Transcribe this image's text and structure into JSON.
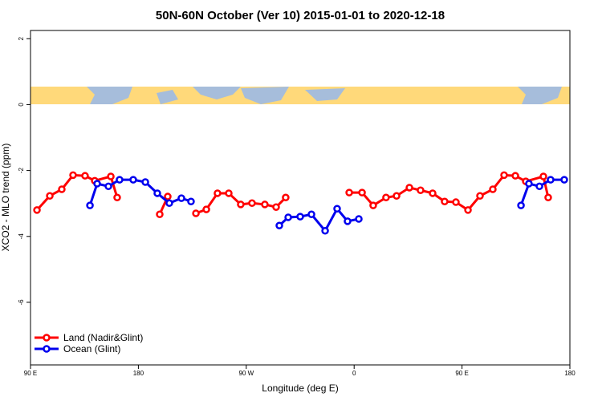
{
  "chart_data": {
    "type": "line",
    "title": "50N-60N October (Ver 10)   2015-01-01 to 2020-12-18",
    "x_label": "Longitude (deg E)",
    "y_label": "XCO2 - MLO trend (ppm)",
    "xlim": [
      90,
      540
    ],
    "ylim": [
      -7.9,
      2.25
    ],
    "xticks": [
      {
        "value": 90,
        "label": "90 E"
      },
      180,
      {
        "value": 270,
        "label": "90 W"
      },
      {
        "value": 360,
        "label": "0"
      },
      {
        "value": 450,
        "label": "90 E"
      },
      {
        "value": 540,
        "label": "180"
      }
    ],
    "yticks": [
      2,
      0,
      -2,
      -4,
      -6
    ],
    "legend": "bottom-left",
    "series": [
      {
        "name": "Land (Nadir&Glint)",
        "color": "#ff0000",
        "x": [
          95.4,
          106.1,
          116.1,
          125.5,
          135.5,
          143.6,
          157,
          162.3,
          null,
          197.8,
          204.5,
          null,
          228,
          236.7,
          246,
          255.4,
          265.4,
          274.8,
          285.5,
          294.9,
          302.9,
          null,
          355.9,
          366.6,
          375.9,
          386.6,
          395.4,
          406.1,
          415.4,
          425.5,
          435.5,
          444.9,
          455,
          465,
          475.7,
          485.1,
          494.5,
          503.2,
          517.9,
          521.9
        ],
        "values": [
          -3.2,
          -2.77,
          -2.57,
          -2.14,
          -2.16,
          -2.31,
          -2.18,
          -2.82,
          null,
          -3.33,
          -2.79,
          null,
          -3.3,
          -3.18,
          -2.69,
          -2.69,
          -3.03,
          -2.99,
          -3.03,
          -3.11,
          -2.82,
          null,
          -2.67,
          -2.67,
          -3.06,
          -2.82,
          -2.77,
          -2.52,
          -2.6,
          -2.69,
          -2.94,
          -2.96,
          -3.2,
          -2.77,
          -2.57,
          -2.14,
          -2.16,
          -2.33,
          -2.18,
          -2.82
        ]
      },
      {
        "name": "Ocean (Glint)",
        "color": "#0000ee",
        "x": [
          139.6,
          145.6,
          155,
          164.3,
          175.7,
          185.8,
          195.8,
          205.8,
          215.9,
          223.9,
          null,
          297.6,
          305,
          315,
          324.4,
          335.8,
          345.8,
          354.5,
          363.9,
          null,
          499.2,
          505.8,
          514.6,
          523.9,
          535.3
        ],
        "values": [
          -3.06,
          -2.4,
          -2.48,
          -2.28,
          -2.28,
          -2.35,
          -2.69,
          -2.99,
          -2.84,
          -2.94,
          null,
          -3.67,
          -3.42,
          -3.4,
          -3.33,
          -3.83,
          -3.16,
          -3.54,
          -3.47,
          null,
          -3.06,
          -2.4,
          -2.48,
          -2.28,
          -2.28
        ]
      }
    ]
  }
}
